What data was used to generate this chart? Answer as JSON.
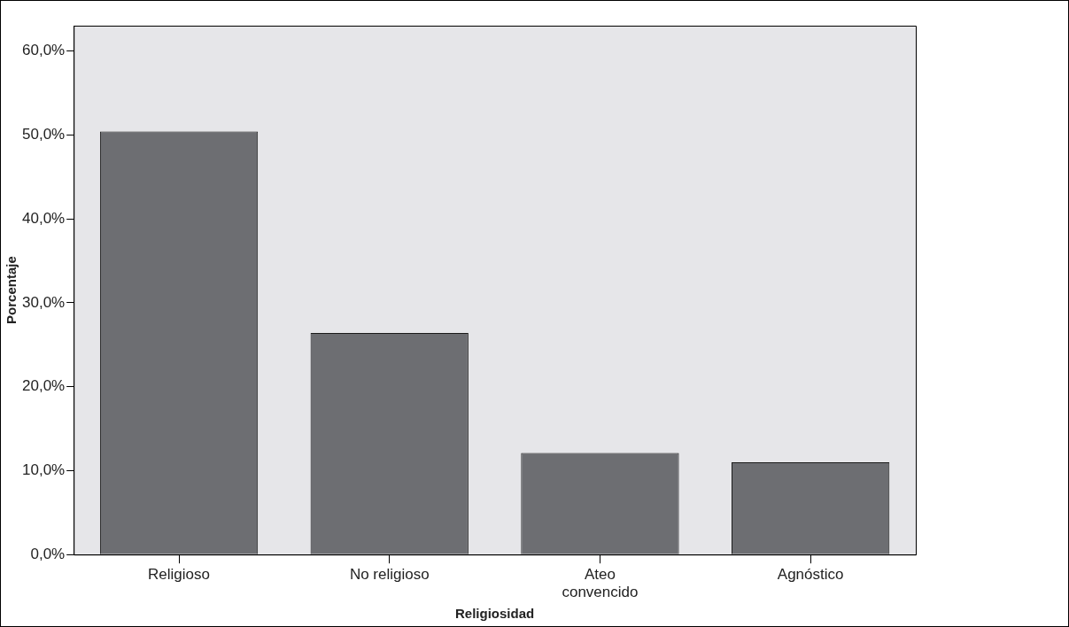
{
  "chart_data": {
    "type": "bar",
    "xlabel": "Religiosidad",
    "ylabel": "Porcentaje",
    "categories": [
      "Religioso",
      "No religioso",
      "Ateo convencido",
      "Agnóstico"
    ],
    "values": [
      50.4,
      26.4,
      12.1,
      11.0
    ],
    "color": "#6d6e72",
    "ylim": [
      0,
      63
    ],
    "yticks": [
      {
        "value": 0,
        "label": "0,0%"
      },
      {
        "value": 10,
        "label": "10,0%"
      },
      {
        "value": 20,
        "label": "20,0%"
      },
      {
        "value": 30,
        "label": "30,0%"
      },
      {
        "value": 40,
        "label": "40,0%"
      },
      {
        "value": 50,
        "label": "50,0%"
      },
      {
        "value": 60,
        "label": "60,0%"
      }
    ],
    "grid": false,
    "legend": false
  }
}
